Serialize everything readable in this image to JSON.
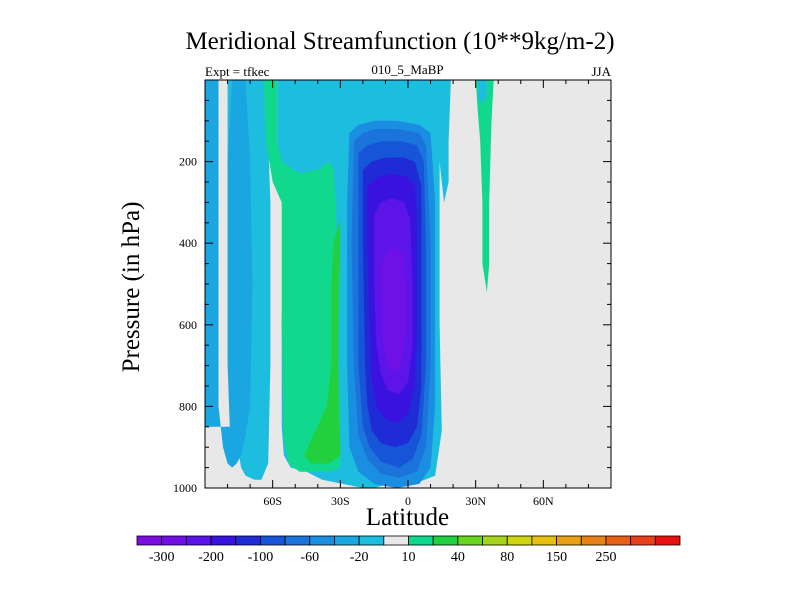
{
  "chart_data": {
    "type": "contour",
    "title": "Meridional Streamfunction (10**9kg/m-2)",
    "subtitle_left": "Expt = tfkec",
    "subtitle_center": "010_5_MaBP",
    "subtitle_right": "JJA",
    "xlabel": "Latitude",
    "ylabel": "Pressure (in hPa)",
    "xlim": [
      -90,
      90
    ],
    "ylim": [
      1000,
      0
    ],
    "x_ticks": [
      {
        "value": -60,
        "label": "60S"
      },
      {
        "value": -30,
        "label": "30S"
      },
      {
        "value": 0,
        "label": "0"
      },
      {
        "value": 30,
        "label": "30N"
      },
      {
        "value": 60,
        "label": "60N"
      }
    ],
    "y_ticks": [
      {
        "value": 200,
        "label": "200"
      },
      {
        "value": 400,
        "label": "400"
      },
      {
        "value": 600,
        "label": "600"
      },
      {
        "value": 800,
        "label": "800"
      },
      {
        "value": 1000,
        "label": "1000"
      }
    ],
    "colorbar": {
      "colors": [
        "#7a0ee0",
        "#6e10e6",
        "#5c14e8",
        "#3a12e0",
        "#1f2bd4",
        "#1655d8",
        "#1b74dc",
        "#1a8ee0",
        "#1aa6e0",
        "#1dbde0",
        "#e8e8e8",
        "#10d98e",
        "#22cf3c",
        "#68d51e",
        "#a6d61c",
        "#d0d414",
        "#e6c010",
        "#e8a014",
        "#e88218",
        "#e86018",
        "#e84018",
        "#e81010"
      ],
      "labels": [
        "-300",
        "-200",
        "-100",
        "-60",
        "-20",
        "10",
        "40",
        "80",
        "150",
        "250"
      ],
      "label_positions": [
        1,
        3,
        5,
        7,
        9,
        11,
        13,
        15,
        17,
        19
      ]
    },
    "background_color": "#e8e8e8",
    "regions": [
      {
        "level": -20,
        "color": "#1dbde0",
        "points": [
          [
            -90,
            0
          ],
          [
            -80,
            0
          ],
          [
            -80,
            200
          ],
          [
            -79,
            400
          ],
          [
            -79,
            700
          ],
          [
            -77,
            850
          ],
          [
            -74,
            950
          ],
          [
            -72,
            970
          ],
          [
            -68,
            980
          ],
          [
            -65,
            980
          ],
          [
            -62,
            940
          ],
          [
            -61,
            700
          ],
          [
            -61,
            300
          ],
          [
            -62,
            150
          ],
          [
            -62,
            0
          ],
          [
            -58,
            0
          ],
          [
            -58,
            150
          ],
          [
            -57,
            250
          ],
          [
            -55,
            350
          ],
          [
            -56,
            600
          ],
          [
            -56,
            850
          ],
          [
            -55,
            920
          ],
          [
            -52,
            950
          ],
          [
            -45,
            960
          ],
          [
            -38,
            980
          ],
          [
            -20,
            1000
          ],
          [
            -15,
            1000
          ],
          [
            -5,
            985
          ],
          [
            5,
            985
          ],
          [
            12,
            970
          ],
          [
            15,
            860
          ],
          [
            14,
            600
          ],
          [
            14,
            150
          ],
          [
            13,
            0
          ],
          [
            -90,
            0
          ]
        ]
      },
      {
        "level": 10,
        "color": "#10d98e",
        "points": [
          [
            -64,
            0
          ],
          [
            -58,
            0
          ],
          [
            -58,
            150
          ],
          [
            -56,
            200
          ],
          [
            -48,
            230
          ],
          [
            -40,
            220
          ],
          [
            -35,
            200
          ],
          [
            -33,
            220
          ],
          [
            -32,
            300
          ],
          [
            -30,
            900
          ],
          [
            -30,
            950
          ],
          [
            -35,
            960
          ],
          [
            -48,
            960
          ],
          [
            -53,
            940
          ],
          [
            -55,
            880
          ],
          [
            -56,
            600
          ],
          [
            -56,
            300
          ],
          [
            -60,
            250
          ],
          [
            -63,
            150
          ],
          [
            -64,
            0
          ]
        ]
      },
      {
        "level": 40,
        "color": "#22cf3c",
        "points": [
          [
            -36,
            800
          ],
          [
            -34,
            700
          ],
          [
            -34,
            500
          ],
          [
            -33,
            400
          ],
          [
            -30,
            340
          ],
          [
            -31,
            700
          ],
          [
            -30,
            920
          ],
          [
            -35,
            940
          ],
          [
            -43,
            940
          ],
          [
            -46,
            920
          ]
        ]
      },
      {
        "level": -40,
        "color": "#1aa6e0",
        "points": [
          [
            -90,
            0
          ],
          [
            -84,
            0
          ],
          [
            -84,
            200
          ],
          [
            -84,
            500
          ],
          [
            -84,
            800
          ],
          [
            -82,
            900
          ],
          [
            -80,
            940
          ],
          [
            -78,
            950
          ],
          [
            -76,
            940
          ],
          [
            -74,
            920
          ],
          [
            -72,
            870
          ],
          [
            -70,
            800
          ],
          [
            -69,
            500
          ],
          [
            -70,
            200
          ],
          [
            -72,
            0
          ],
          [
            -78,
            0
          ],
          [
            -80,
            200
          ],
          [
            -80,
            700
          ],
          [
            -79,
            850
          ],
          [
            -90,
            850
          ]
        ]
      },
      {
        "level": -60,
        "color": "#1a8ee0",
        "points": [
          [
            -26,
            130
          ],
          [
            -22,
            110
          ],
          [
            -15,
            100
          ],
          [
            -5,
            100
          ],
          [
            5,
            110
          ],
          [
            10,
            130
          ],
          [
            12,
            300
          ],
          [
            12,
            800
          ],
          [
            10,
            950
          ],
          [
            5,
            990
          ],
          [
            -5,
            1000
          ],
          [
            -15,
            990
          ],
          [
            -22,
            960
          ],
          [
            -26,
            900
          ],
          [
            -27,
            700
          ],
          [
            -27,
            300
          ]
        ]
      },
      {
        "level": -80,
        "color": "#1b74dc",
        "points": [
          [
            -24,
            150
          ],
          [
            -20,
            130
          ],
          [
            -15,
            120
          ],
          [
            -5,
            120
          ],
          [
            5,
            130
          ],
          [
            8,
            160
          ],
          [
            10,
            400
          ],
          [
            10,
            700
          ],
          [
            8,
            900
          ],
          [
            4,
            960
          ],
          [
            -4,
            975
          ],
          [
            -12,
            965
          ],
          [
            -18,
            930
          ],
          [
            -22,
            870
          ],
          [
            -24,
            700
          ],
          [
            -25,
            400
          ]
        ]
      },
      {
        "level": -100,
        "color": "#1655d8",
        "points": [
          [
            -22,
            180
          ],
          [
            -18,
            160
          ],
          [
            -12,
            150
          ],
          [
            -3,
            150
          ],
          [
            4,
            160
          ],
          [
            7,
            200
          ],
          [
            8,
            400
          ],
          [
            8,
            700
          ],
          [
            6,
            870
          ],
          [
            2,
            930
          ],
          [
            -4,
            950
          ],
          [
            -12,
            935
          ],
          [
            -17,
            900
          ],
          [
            -20,
            850
          ],
          [
            -22,
            700
          ],
          [
            -22,
            400
          ]
        ]
      },
      {
        "level": -150,
        "color": "#1f2bd4",
        "points": [
          [
            -20,
            220
          ],
          [
            -16,
            200
          ],
          [
            -10,
            190
          ],
          [
            -2,
            190
          ],
          [
            3,
            200
          ],
          [
            6,
            260
          ],
          [
            6,
            500
          ],
          [
            6,
            750
          ],
          [
            4,
            850
          ],
          [
            0,
            890
          ],
          [
            -6,
            900
          ],
          [
            -12,
            890
          ],
          [
            -16,
            860
          ],
          [
            -18,
            800
          ],
          [
            -19,
            700
          ],
          [
            -20,
            400
          ]
        ]
      },
      {
        "level": -200,
        "color": "#3a12e0",
        "points": [
          [
            -18,
            260
          ],
          [
            -14,
            240
          ],
          [
            -8,
            230
          ],
          [
            -1,
            235
          ],
          [
            3,
            260
          ],
          [
            4,
            350
          ],
          [
            4,
            600
          ],
          [
            3,
            750
          ],
          [
            0,
            820
          ],
          [
            -5,
            840
          ],
          [
            -10,
            830
          ],
          [
            -14,
            800
          ],
          [
            -16,
            740
          ],
          [
            -17,
            600
          ],
          [
            -18,
            400
          ]
        ]
      },
      {
        "level": -250,
        "color": "#5c14e8",
        "points": [
          [
            -15,
            330
          ],
          [
            -12,
            300
          ],
          [
            -7,
            290
          ],
          [
            -2,
            300
          ],
          [
            1,
            340
          ],
          [
            2,
            500
          ],
          [
            2,
            650
          ],
          [
            0,
            740
          ],
          [
            -4,
            770
          ],
          [
            -9,
            760
          ],
          [
            -12,
            720
          ],
          [
            -14,
            650
          ],
          [
            -15,
            500
          ]
        ]
      },
      {
        "level": -300,
        "color": "#6e10e6",
        "points": [
          [
            -12,
            450
          ],
          [
            -9,
            420
          ],
          [
            -5,
            410
          ],
          [
            -2,
            430
          ],
          [
            -1,
            500
          ],
          [
            -1,
            620
          ],
          [
            -3,
            700
          ],
          [
            -6,
            720
          ],
          [
            -9,
            700
          ],
          [
            -11,
            640
          ],
          [
            -12,
            550
          ]
        ]
      },
      {
        "level": -20,
        "color": "#1dbde0",
        "points": [
          [
            12,
            0
          ],
          [
            19,
            0
          ],
          [
            18,
            150
          ],
          [
            18,
            250
          ],
          [
            16,
            300
          ],
          [
            15,
            250
          ],
          [
            13,
            150
          ],
          [
            12,
            0
          ]
        ]
      },
      {
        "level": 10,
        "color": "#10d98e",
        "points": [
          [
            30,
            0
          ],
          [
            38,
            0
          ],
          [
            37,
            100
          ],
          [
            36,
            300
          ],
          [
            36,
            450
          ],
          [
            35,
            520
          ],
          [
            33,
            450
          ],
          [
            33,
            300
          ],
          [
            32,
            150
          ],
          [
            31,
            80
          ],
          [
            30,
            0
          ]
        ]
      },
      {
        "level": -20,
        "color": "#1dbde0",
        "points": [
          [
            31,
            0
          ],
          [
            35,
            0
          ],
          [
            35,
            40
          ],
          [
            33,
            60
          ],
          [
            31,
            40
          ]
        ]
      }
    ]
  }
}
